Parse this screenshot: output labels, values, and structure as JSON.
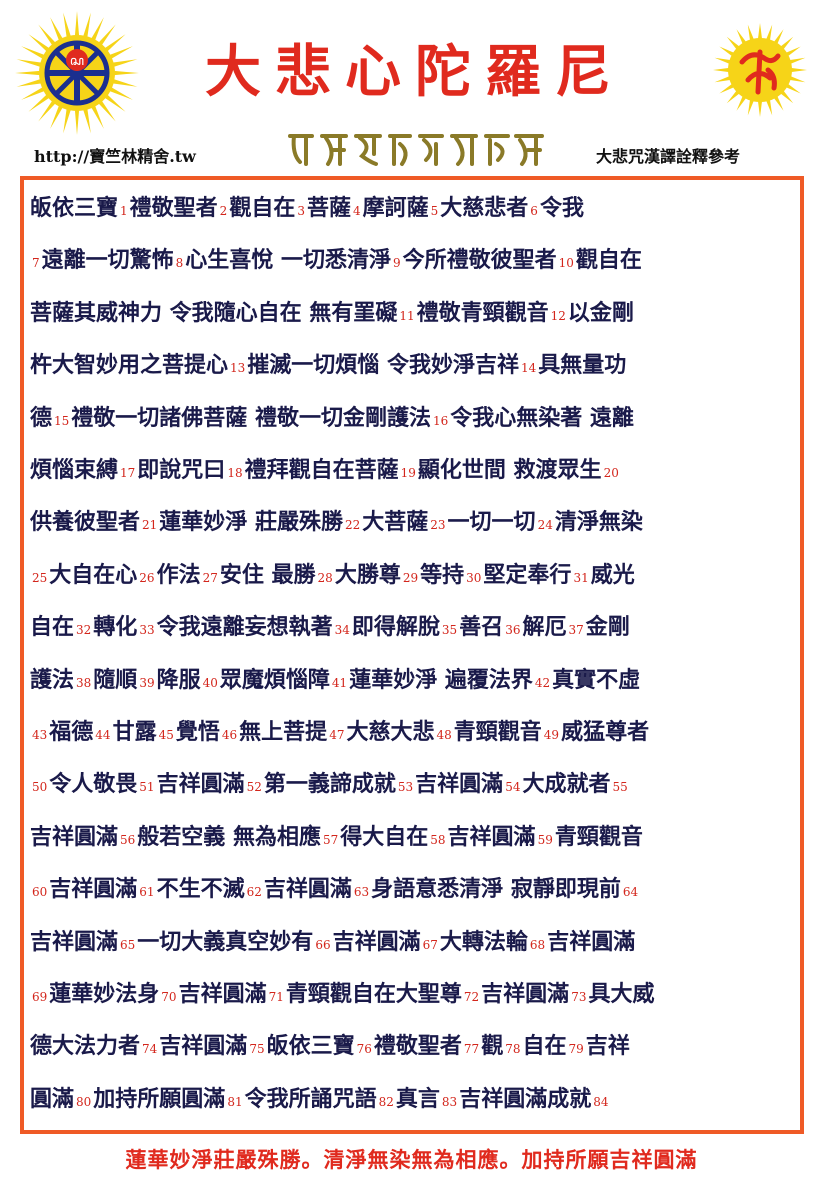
{
  "header": {
    "title": "大悲心陀羅尼",
    "url": "http://寶竺林精舍.tw",
    "subtitle_right": "大悲咒漢譯詮釋參考",
    "logo_left_icon": "dharma-wheel-sun-logo-icon",
    "logo_right_icon": "siddham-syllable-sun-logo-icon",
    "siddham_icon": "siddham-script-line-icon"
  },
  "colors": {
    "title": "#e02a1e",
    "number": "#d3261c",
    "text": "#1a1a4a",
    "border": "#ef5a26",
    "sun_yellow": "#f6d418",
    "siddham_gold": "#8a7a28"
  },
  "lines": [
    [
      {
        "t": "皈依三寶"
      },
      {
        "n": "1"
      },
      {
        "t": "禮敬聖者"
      },
      {
        "n": "2"
      },
      {
        "t": "觀自在"
      },
      {
        "n": "3"
      },
      {
        "t": "菩薩"
      },
      {
        "n": "4"
      },
      {
        "t": "摩訶薩"
      },
      {
        "n": "5"
      },
      {
        "t": "大慈悲者"
      },
      {
        "n": "6"
      },
      {
        "t": "令我"
      }
    ],
    [
      {
        "n": "7"
      },
      {
        "t": "遠離一切驚怖"
      },
      {
        "n": "8"
      },
      {
        "t": "心生喜悅 一切悉清淨"
      },
      {
        "n": "9"
      },
      {
        "t": "今所禮敬彼聖者"
      },
      {
        "n": "10"
      },
      {
        "t": "觀自在"
      }
    ],
    [
      {
        "t": "菩薩其威神力 令我隨心自在 無有罣礙"
      },
      {
        "n": "11"
      },
      {
        "t": "禮敬青頸觀音"
      },
      {
        "n": "12"
      },
      {
        "t": "以金剛"
      }
    ],
    [
      {
        "t": "杵大智妙用之菩提心"
      },
      {
        "n": "13"
      },
      {
        "t": "摧滅一切煩惱 令我妙淨吉祥"
      },
      {
        "n": "14"
      },
      {
        "t": "具無量功"
      }
    ],
    [
      {
        "t": "德"
      },
      {
        "n": "15"
      },
      {
        "t": "禮敬一切諸佛菩薩 禮敬一切金剛護法"
      },
      {
        "n": "16"
      },
      {
        "t": "令我心無染著 遠離"
      }
    ],
    [
      {
        "t": "煩惱束縛"
      },
      {
        "n": "17"
      },
      {
        "t": "即說咒曰"
      },
      {
        "n": "18"
      },
      {
        "t": "禮拜觀自在菩薩"
      },
      {
        "n": "19"
      },
      {
        "t": "顯化世間 救渡眾生"
      },
      {
        "n": "20"
      }
    ],
    [
      {
        "t": "供養彼聖者"
      },
      {
        "n": "21"
      },
      {
        "t": "蓮華妙淨 莊嚴殊勝"
      },
      {
        "n": "22"
      },
      {
        "t": "大菩薩"
      },
      {
        "n": "23"
      },
      {
        "t": "一切一切"
      },
      {
        "n": "24"
      },
      {
        "t": "清淨無染"
      }
    ],
    [
      {
        "n": "25"
      },
      {
        "t": "大自在心"
      },
      {
        "n": "26"
      },
      {
        "t": "作法"
      },
      {
        "n": "27"
      },
      {
        "t": "安住 最勝"
      },
      {
        "n": "28"
      },
      {
        "t": "大勝尊"
      },
      {
        "n": "29"
      },
      {
        "t": "等持"
      },
      {
        "n": "30"
      },
      {
        "t": "堅定奉行"
      },
      {
        "n": "31"
      },
      {
        "t": "威光"
      }
    ],
    [
      {
        "t": "自在"
      },
      {
        "n": "32"
      },
      {
        "t": "轉化"
      },
      {
        "n": "33"
      },
      {
        "t": "令我遠離妄想執著"
      },
      {
        "n": "34"
      },
      {
        "t": "即得解脫"
      },
      {
        "n": "35"
      },
      {
        "t": "善召"
      },
      {
        "n": "36"
      },
      {
        "t": "解厄"
      },
      {
        "n": "37"
      },
      {
        "t": "金剛"
      }
    ],
    [
      {
        "t": "護法"
      },
      {
        "n": "38"
      },
      {
        "t": "隨順"
      },
      {
        "n": "39"
      },
      {
        "t": "降服"
      },
      {
        "n": "40"
      },
      {
        "t": "眾魔煩惱障"
      },
      {
        "n": "41"
      },
      {
        "t": "蓮華妙淨 遍覆法界"
      },
      {
        "n": "42"
      },
      {
        "t": "真實不虛"
      }
    ],
    [
      {
        "n": "43"
      },
      {
        "t": "福德"
      },
      {
        "n": "44"
      },
      {
        "t": "甘露"
      },
      {
        "n": "45"
      },
      {
        "t": "覺悟"
      },
      {
        "n": "46"
      },
      {
        "t": "無上菩提"
      },
      {
        "n": "47"
      },
      {
        "t": "大慈大悲"
      },
      {
        "n": "48"
      },
      {
        "t": "青頸觀音"
      },
      {
        "n": "49"
      },
      {
        "t": "威猛尊者"
      }
    ],
    [
      {
        "n": "50"
      },
      {
        "t": "令人敬畏"
      },
      {
        "n": "51"
      },
      {
        "t": "吉祥圓滿"
      },
      {
        "n": "52"
      },
      {
        "t": "第一義諦成就"
      },
      {
        "n": "53"
      },
      {
        "t": "吉祥圓滿"
      },
      {
        "n": "54"
      },
      {
        "t": "大成就者"
      },
      {
        "n": "55"
      }
    ],
    [
      {
        "t": "吉祥圓滿"
      },
      {
        "n": "56"
      },
      {
        "t": "般若空義 無為相應"
      },
      {
        "n": "57"
      },
      {
        "t": "得大自在"
      },
      {
        "n": "58"
      },
      {
        "t": "吉祥圓滿"
      },
      {
        "n": "59"
      },
      {
        "t": "青頸觀音"
      }
    ],
    [
      {
        "n": "60"
      },
      {
        "t": "吉祥圓滿"
      },
      {
        "n": "61"
      },
      {
        "t": "不生不滅"
      },
      {
        "n": "62"
      },
      {
        "t": "吉祥圓滿"
      },
      {
        "n": "63"
      },
      {
        "t": "身語意悉清淨 寂靜即現前"
      },
      {
        "n": "64"
      }
    ],
    [
      {
        "t": "吉祥圓滿"
      },
      {
        "n": "65"
      },
      {
        "t": "一切大義真空妙有"
      },
      {
        "n": "66"
      },
      {
        "t": "吉祥圓滿"
      },
      {
        "n": "67"
      },
      {
        "t": "大轉法輪"
      },
      {
        "n": "68"
      },
      {
        "t": "吉祥圓滿"
      }
    ],
    [
      {
        "n": "69"
      },
      {
        "t": "蓮華妙法身"
      },
      {
        "n": "70"
      },
      {
        "t": "吉祥圓滿"
      },
      {
        "n": "71"
      },
      {
        "t": "青頸觀自在大聖尊"
      },
      {
        "n": "72"
      },
      {
        "t": "吉祥圓滿"
      },
      {
        "n": "73"
      },
      {
        "t": "具大威"
      }
    ],
    [
      {
        "t": "德大法力者"
      },
      {
        "n": "74"
      },
      {
        "t": "吉祥圓滿"
      },
      {
        "n": "75"
      },
      {
        "t": "皈依三寶"
      },
      {
        "n": "76"
      },
      {
        "t": "禮敬聖者"
      },
      {
        "n": "77"
      },
      {
        "t": "觀"
      },
      {
        "n": "78"
      },
      {
        "t": "自在"
      },
      {
        "n": "79"
      },
      {
        "t": "吉祥"
      }
    ],
    [
      {
        "t": "圓滿"
      },
      {
        "n": "80"
      },
      {
        "t": "加持所願圓滿"
      },
      {
        "n": "81"
      },
      {
        "t": "令我所誦咒語"
      },
      {
        "n": "82"
      },
      {
        "t": "真言"
      },
      {
        "n": "83"
      },
      {
        "t": "吉祥圓滿成就"
      },
      {
        "n": "84"
      }
    ]
  ],
  "footer": "蓮華妙淨莊嚴殊勝。清淨無染無為相應。加持所願吉祥圓滿"
}
